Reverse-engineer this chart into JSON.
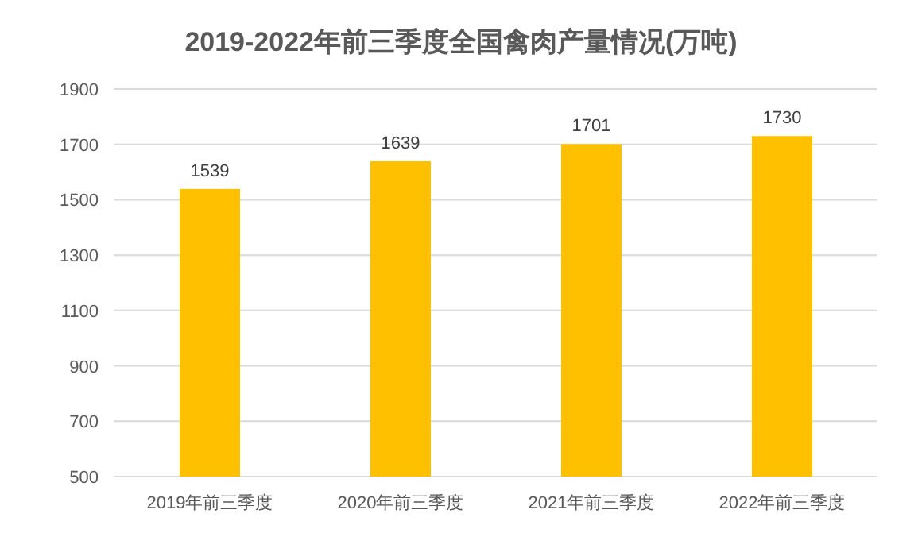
{
  "chart_data": {
    "type": "bar",
    "title": "2019-2022年前三季度全国禽肉产量情况(万吨)",
    "categories": [
      "2019年前三季度",
      "2020年前三季度",
      "2021年前三季度",
      "2022年前三季度"
    ],
    "values": [
      1539,
      1639,
      1701,
      1730
    ],
    "color": "#ffc000",
    "ylim": [
      500,
      1900
    ],
    "yticks": [
      500,
      700,
      900,
      1100,
      1300,
      1500,
      1700,
      1900
    ],
    "grid": "y",
    "data_labels": true
  }
}
